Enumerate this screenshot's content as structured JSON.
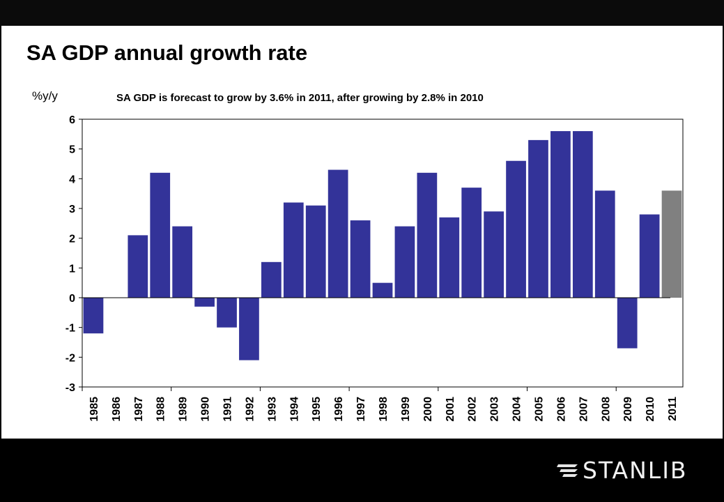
{
  "slide": {
    "title": "SA GDP annual growth rate",
    "logo_text": "STANLIB"
  },
  "chart_data": {
    "type": "bar",
    "title": "SA GDP is forecast to grow by 3.6% in 2011, after growing by 2.8% in 2010",
    "ylabel": "%y/y",
    "xlabel": "",
    "ylim": [
      -3,
      6
    ],
    "yticks": [
      6,
      5,
      4,
      3,
      2,
      1,
      0,
      -1,
      -2,
      -3
    ],
    "categories": [
      "1985",
      "1986",
      "1987",
      "1988",
      "1989",
      "1990",
      "1991",
      "1992",
      "1993",
      "1994",
      "1995",
      "1996",
      "1997",
      "1998",
      "1999",
      "2000",
      "2001",
      "2002",
      "2003",
      "2004",
      "2005",
      "2006",
      "2007",
      "2008",
      "2009",
      "2010",
      "2011"
    ],
    "values": [
      -1.2,
      0.0,
      2.1,
      4.2,
      2.4,
      -0.3,
      -1.0,
      -2.1,
      1.2,
      3.2,
      3.1,
      4.3,
      2.6,
      0.5,
      2.4,
      4.2,
      2.7,
      3.7,
      2.9,
      4.6,
      5.3,
      5.6,
      5.6,
      3.6,
      -1.7,
      2.8,
      3.6
    ],
    "forecast_categories": [
      "2011"
    ],
    "colors": {
      "actual": "#333399",
      "forecast": "#808080"
    },
    "grid": false,
    "legend": "none"
  }
}
